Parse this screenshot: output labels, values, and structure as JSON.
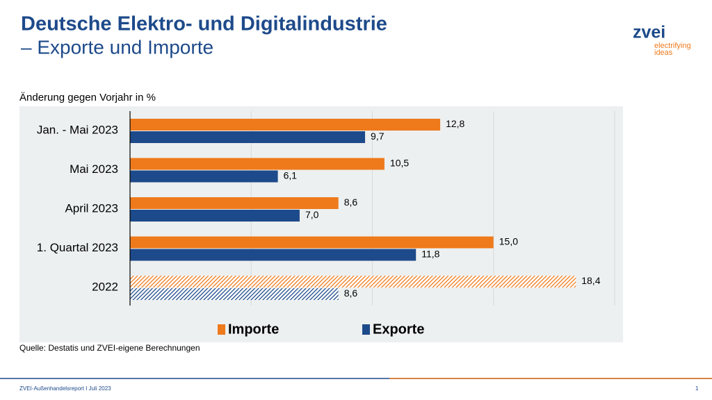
{
  "header": {
    "title": "Deutsche Elektro- und Digitalindustrie",
    "subtitle": "– Exporte und Importe"
  },
  "logo": {
    "name": "zvei",
    "tagline_1": "electrifying",
    "tagline_2": "ideas"
  },
  "chart_data": {
    "type": "bar",
    "orientation": "horizontal",
    "axis_label": "Änderung gegen Vorjahr in %",
    "categories": [
      "Jan. - Mai 2023",
      "Mai 2023",
      "April 2023",
      "1. Quartal 2023",
      "2022"
    ],
    "series": [
      {
        "name": "Importe",
        "color": "#ee7a1c",
        "values": [
          12.8,
          10.5,
          8.6,
          15.0,
          18.4
        ],
        "value_labels": [
          "12,8",
          "10,5",
          "8,6",
          "15,0",
          "18,4"
        ]
      },
      {
        "name": "Exporte",
        "color": "#1d4a8a",
        "values": [
          9.7,
          6.1,
          7.0,
          11.8,
          8.6
        ],
        "value_labels": [
          "9,7",
          "6,1",
          "7,0",
          "11,8",
          "8,6"
        ]
      }
    ],
    "hatched": [
      false,
      false,
      false,
      false,
      true
    ],
    "xlim": [
      0,
      20
    ],
    "xticks": [
      0,
      5,
      10,
      15,
      20
    ],
    "grid": true,
    "legend": "bottom"
  },
  "source": "Quelle: Destatis und ZVEI-eigene Berechnungen",
  "footer": {
    "left": "ZVEI-Außenhandelsreport I Juli 2023",
    "page": "1"
  }
}
